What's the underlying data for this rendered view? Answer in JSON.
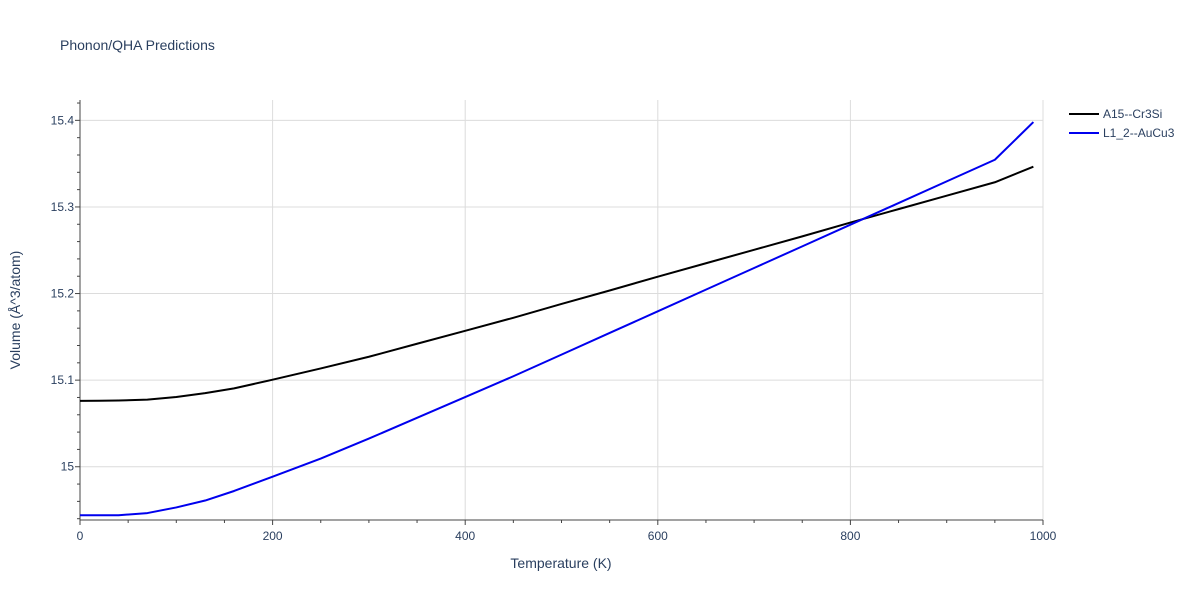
{
  "chart_data": {
    "type": "line",
    "title": "Phonon/QHA Predictions",
    "xlabel": "Temperature (K)",
    "ylabel": "Volume (Å^3/atom)",
    "xlim": [
      0,
      1000
    ],
    "ylim": [
      14.9385,
      15.4235
    ],
    "xticks": [
      0,
      200,
      400,
      600,
      800,
      1000
    ],
    "xtick_labels": [
      "0",
      "200",
      "400",
      "600",
      "800",
      "1000"
    ],
    "yticks": [
      15.0,
      15.1,
      15.2,
      15.3,
      15.4
    ],
    "ytick_labels": [
      "15",
      "15.1",
      "15.2",
      "15.3",
      "15.4"
    ],
    "grid": true,
    "legend_position": "top-right",
    "series": [
      {
        "name": "A15--Cr3Si",
        "color": "#000000",
        "x": [
          0,
          20,
          40,
          70,
          100,
          130,
          160,
          200,
          250,
          300,
          350,
          400,
          450,
          500,
          550,
          600,
          650,
          700,
          750,
          800,
          850,
          900,
          950,
          990
        ],
        "y": [
          15.076,
          15.0762,
          15.0765,
          15.0775,
          15.0805,
          15.085,
          15.0905,
          15.1005,
          15.1135,
          15.127,
          15.142,
          15.157,
          15.172,
          15.188,
          15.2035,
          15.2195,
          15.235,
          15.2505,
          15.266,
          15.282,
          15.2975,
          15.313,
          15.3285,
          15.3465
        ]
      },
      {
        "name": "L1_2--AuCu3",
        "color": "#0000ee",
        "x": [
          0,
          20,
          40,
          70,
          100,
          130,
          160,
          200,
          250,
          300,
          350,
          400,
          450,
          500,
          550,
          600,
          650,
          700,
          750,
          800,
          850,
          900,
          950,
          990
        ],
        "y": [
          14.944,
          14.944,
          14.944,
          14.9465,
          14.953,
          14.961,
          14.972,
          14.9885,
          15.0095,
          15.0325,
          15.0565,
          15.0805,
          15.1045,
          15.1295,
          15.1545,
          15.1795,
          15.2045,
          15.2295,
          15.2545,
          15.2795,
          15.3045,
          15.3295,
          15.3545,
          15.398
        ]
      }
    ]
  }
}
